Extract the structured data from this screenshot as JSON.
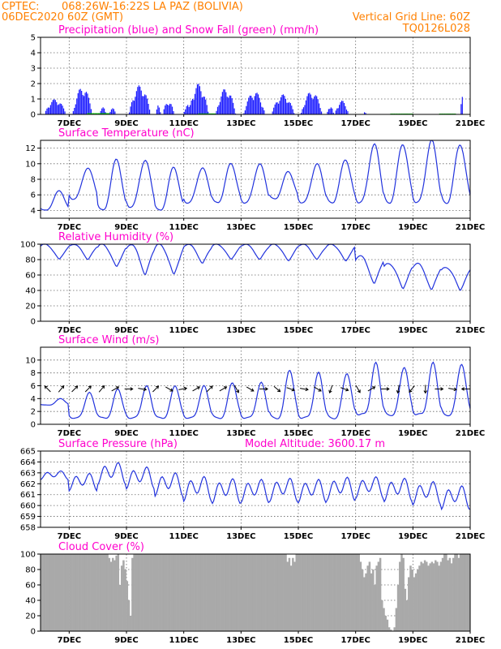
{
  "header": {
    "source": "CPTEC:",
    "location": "068:26W-16:22S   LA PAZ (BOLIVIA)",
    "run": "06DEC2020 60Z (GMT)",
    "grid_note": "Vertical Grid Line: 60Z",
    "code": "TQ0126L028"
  },
  "colors": {
    "header": "#ff8000",
    "titles": "#ff00cc",
    "line": "#2233dd",
    "precip": "#1a1aff",
    "snow": "#00cc00",
    "cloud": "#a9a9a9"
  },
  "panels": {
    "precip": {
      "title": "Precipitation (blue) and Snow Fall (green) (mm/h)"
    },
    "temperature": {
      "title": "Surface Temperature (nC)"
    },
    "humidity": {
      "title": "Relative Humidity (%)"
    },
    "wind": {
      "title": "Surface Wind (m/s)"
    },
    "pressure": {
      "title": "Surface Pressure (hPa)",
      "extra": "Model Altitude: 3600.17 m"
    },
    "cloud": {
      "title": "Cloud Cover (%)"
    }
  },
  "chart_data": [
    {
      "type": "bar",
      "id": "precip",
      "title": "Precipitation (blue) and Snow Fall (green) (mm/h)",
      "x_labels": [
        "7DEC",
        "9DEC",
        "11DEC",
        "13DEC",
        "15DEC",
        "17DEC",
        "19DEC",
        "21DEC"
      ],
      "ylim": [
        0,
        5
      ],
      "yticks": [
        "0",
        "1",
        "2",
        "3",
        "4",
        "5"
      ],
      "x_range_days": [
        0,
        15
      ],
      "series": [
        {
          "name": "Precipitation",
          "episodes": [
            {
              "center": 0.5,
              "half_width": 0.38,
              "peak": 1.0
            },
            {
              "center": 1.45,
              "half_width": 0.35,
              "peak": 1.8
            },
            {
              "center": 2.15,
              "half_width": 0.12,
              "peak": 0.5
            },
            {
              "center": 2.5,
              "half_width": 0.12,
              "peak": 0.4
            },
            {
              "center": 3.45,
              "half_width": 0.38,
              "peak": 1.9
            },
            {
              "center": 4.1,
              "half_width": 0.08,
              "peak": 0.7
            },
            {
              "center": 4.45,
              "half_width": 0.2,
              "peak": 0.9
            },
            {
              "center": 5.1,
              "half_width": 0.12,
              "peak": 0.7
            },
            {
              "center": 5.5,
              "half_width": 0.35,
              "peak": 2.0
            },
            {
              "center": 6.45,
              "half_width": 0.35,
              "peak": 1.7
            },
            {
              "center": 7.45,
              "half_width": 0.38,
              "peak": 1.5
            },
            {
              "center": 8.45,
              "half_width": 0.4,
              "peak": 1.3
            },
            {
              "center": 9.45,
              "half_width": 0.38,
              "peak": 1.5
            },
            {
              "center": 10.1,
              "half_width": 0.12,
              "peak": 0.6
            },
            {
              "center": 10.5,
              "half_width": 0.25,
              "peak": 0.9
            },
            {
              "center": 11.3,
              "half_width": 0.05,
              "peak": 0.2
            },
            {
              "center": 14.7,
              "half_width": 0.05,
              "peak": 1.2
            }
          ]
        },
        {
          "name": "Snow Fall",
          "episodes": [
            {
              "center": 2.0,
              "half_width": 0.4,
              "peak": 0.08
            },
            {
              "center": 5.8,
              "half_width": 0.3,
              "peak": 0.06
            },
            {
              "center": 12.6,
              "half_width": 0.4,
              "peak": 0.05
            },
            {
              "center": 14.2,
              "half_width": 0.3,
              "peak": 0.05
            }
          ]
        }
      ]
    },
    {
      "type": "line",
      "id": "temperature",
      "title": "Surface Temperature (nC)",
      "x_labels": [
        "7DEC",
        "9DEC",
        "11DEC",
        "13DEC",
        "15DEC",
        "17DEC",
        "19DEC",
        "21DEC"
      ],
      "ylim": [
        3,
        13
      ],
      "yticks": [
        "4",
        "6",
        "8",
        "10",
        "12"
      ],
      "x_range_days": [
        0,
        15
      ],
      "daily_min": [
        4.0,
        5.5,
        4.0,
        4.5,
        4.0,
        5.0,
        5.0,
        5.0,
        5.5,
        5.0,
        5.0,
        5.0,
        5.0,
        5.0,
        5.0
      ],
      "daily_max": [
        6.5,
        9.5,
        10.5,
        10.5,
        9.5,
        9.5,
        10.0,
        10.0,
        9.0,
        10.0,
        10.5,
        12.5,
        12.5,
        13.0,
        12.5
      ]
    },
    {
      "type": "line",
      "id": "humidity",
      "title": "Relative Humidity (%)",
      "x_labels": [
        "7DEC",
        "9DEC",
        "11DEC",
        "13DEC",
        "15DEC",
        "17DEC",
        "19DEC",
        "21DEC"
      ],
      "ylim": [
        0,
        100
      ],
      "yticks": [
        "0",
        "20",
        "40",
        "60",
        "80",
        "100"
      ],
      "x_range_days": [
        0,
        15
      ],
      "daily_min": [
        80,
        80,
        70,
        60,
        60,
        75,
        80,
        80,
        78,
        80,
        78,
        48,
        42,
        40,
        40
      ],
      "daily_max": [
        100,
        100,
        100,
        100,
        100,
        100,
        100,
        100,
        100,
        100,
        100,
        85,
        75,
        75,
        70
      ]
    },
    {
      "type": "line",
      "id": "wind",
      "title": "Surface Wind (m/s)",
      "x_labels": [
        "7DEC",
        "9DEC",
        "11DEC",
        "13DEC",
        "15DEC",
        "17DEC",
        "19DEC",
        "21DEC"
      ],
      "ylim": [
        0,
        12
      ],
      "yticks": [
        "0",
        "2",
        "4",
        "6",
        "8",
        "10"
      ],
      "x_range_days": [
        0,
        15
      ],
      "daily_min": [
        3.0,
        1.0,
        1.0,
        1.0,
        1.0,
        1.0,
        1.0,
        1.0,
        1.0,
        1.0,
        1.0,
        1.5,
        1.5,
        1.5,
        1.5
      ],
      "daily_max": [
        4.0,
        5.0,
        5.5,
        6.0,
        6.0,
        6.0,
        6.5,
        6.5,
        8.5,
        8.0,
        8.0,
        9.5,
        9.0,
        9.5,
        9.5
      ],
      "wind_arrow_directions_deg": [
        315,
        40,
        45,
        45,
        40,
        60,
        90,
        100,
        45,
        120,
        80,
        60,
        45,
        60,
        150,
        120,
        90,
        130,
        110,
        100,
        120,
        200,
        110,
        150,
        60,
        90,
        190,
        220,
        180,
        90,
        100,
        270
      ]
    },
    {
      "type": "line",
      "id": "pressure",
      "title": "Surface Pressure (hPa)",
      "x_labels": [
        "7DEC",
        "9DEC",
        "11DEC",
        "13DEC",
        "15DEC",
        "17DEC",
        "19DEC",
        "21DEC"
      ],
      "ylim": [
        658,
        665
      ],
      "yticks": [
        "658",
        "659",
        "660",
        "661",
        "662",
        "663",
        "664",
        "665"
      ],
      "x_range_days": [
        0,
        15
      ],
      "daily_mean": [
        662.8,
        662.2,
        663.0,
        662.6,
        662.0,
        661.6,
        661.4,
        661.4,
        661.5,
        661.4,
        661.6,
        661.7,
        661.5,
        661.2,
        660.8
      ],
      "daily_amplitude": [
        0.6,
        1.2,
        1.5,
        1.5,
        1.6,
        1.7,
        1.7,
        1.6,
        1.6,
        1.6,
        1.6,
        1.5,
        1.6,
        1.6,
        1.6
      ]
    },
    {
      "type": "area",
      "id": "cloud",
      "title": "Cloud Cover (%)",
      "x_labels": [
        "7DEC",
        "9DEC",
        "11DEC",
        "13DEC",
        "15DEC",
        "17DEC",
        "19DEC",
        "21DEC"
      ],
      "ylim": [
        0,
        100
      ],
      "yticks": [
        "0",
        "20",
        "40",
        "60",
        "80",
        "100"
      ],
      "x_range_days": [
        0,
        15
      ],
      "values": [
        100,
        100,
        100,
        100,
        100,
        100,
        100,
        100,
        100,
        100,
        100,
        100,
        100,
        100,
        100,
        100,
        100,
        100,
        100,
        100,
        100,
        100,
        100,
        100,
        100,
        100,
        100,
        100,
        100,
        100,
        100,
        100,
        100,
        100,
        100,
        100,
        100,
        100,
        95,
        90,
        95,
        92,
        98,
        100,
        60,
        85,
        92,
        80,
        65,
        40,
        20,
        95,
        100,
        100,
        100,
        100,
        100,
        100,
        100,
        100,
        100,
        100,
        100,
        100,
        100,
        100,
        100,
        100,
        100,
        100,
        100,
        100,
        100,
        100,
        100,
        100,
        100,
        100,
        100,
        100,
        100,
        100,
        100,
        100,
        100,
        100,
        100,
        100,
        100,
        100,
        100,
        100,
        100,
        100,
        100,
        100,
        100,
        100,
        100,
        100,
        100,
        100,
        100,
        100,
        100,
        100,
        100,
        100,
        100,
        100,
        100,
        100,
        100,
        100,
        100,
        100,
        100,
        100,
        100,
        100,
        100,
        100,
        100,
        100,
        100,
        100,
        100,
        100,
        100,
        100,
        100,
        100,
        100,
        100,
        100,
        100,
        100,
        100,
        90,
        95,
        85,
        95,
        90,
        100,
        100,
        100,
        100,
        100,
        100,
        100,
        100,
        100,
        100,
        100,
        100,
        100,
        100,
        100,
        100,
        100,
        100,
        100,
        100,
        100,
        100,
        100,
        100,
        100,
        100,
        100,
        100,
        100,
        100,
        100,
        100,
        100,
        100,
        100,
        100,
        90,
        80,
        70,
        75,
        85,
        90,
        75,
        80,
        60,
        85,
        90,
        95,
        40,
        30,
        20,
        15,
        5,
        2,
        0,
        5,
        30,
        60,
        90,
        100,
        95,
        55,
        40,
        70,
        85,
        80,
        70,
        75,
        80,
        85,
        90,
        88,
        92,
        90,
        85,
        88,
        90,
        88,
        92,
        90,
        85,
        90,
        95,
        100,
        100,
        92,
        95,
        88,
        95,
        100,
        100,
        95,
        100,
        100,
        100,
        100,
        100,
        100
      ]
    }
  ]
}
